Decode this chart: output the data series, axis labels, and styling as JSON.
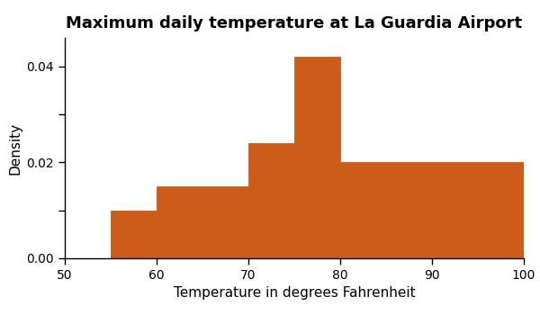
{
  "title": "Maximum daily temperature at La Guardia Airport",
  "xlabel": "Temperature in degrees Fahrenheit",
  "ylabel": "Density",
  "bar_edges": [
    55,
    60,
    70,
    75,
    80,
    100
  ],
  "bar_densities": [
    0.01,
    0.015,
    0.024,
    0.042,
    0.02
  ],
  "bar_color": "#CD5C1A",
  "bar_edgecolor": "#CD5C1A",
  "xlim": [
    50,
    100
  ],
  "ylim": [
    0,
    0.046
  ],
  "xticks": [
    50,
    60,
    70,
    80,
    90,
    100
  ],
  "yticks": [
    0.0,
    0.01,
    0.02,
    0.03,
    0.04
  ],
  "background_color": "#FFFFFF",
  "title_fontsize": 13,
  "label_fontsize": 11,
  "tick_labelsize": 10
}
